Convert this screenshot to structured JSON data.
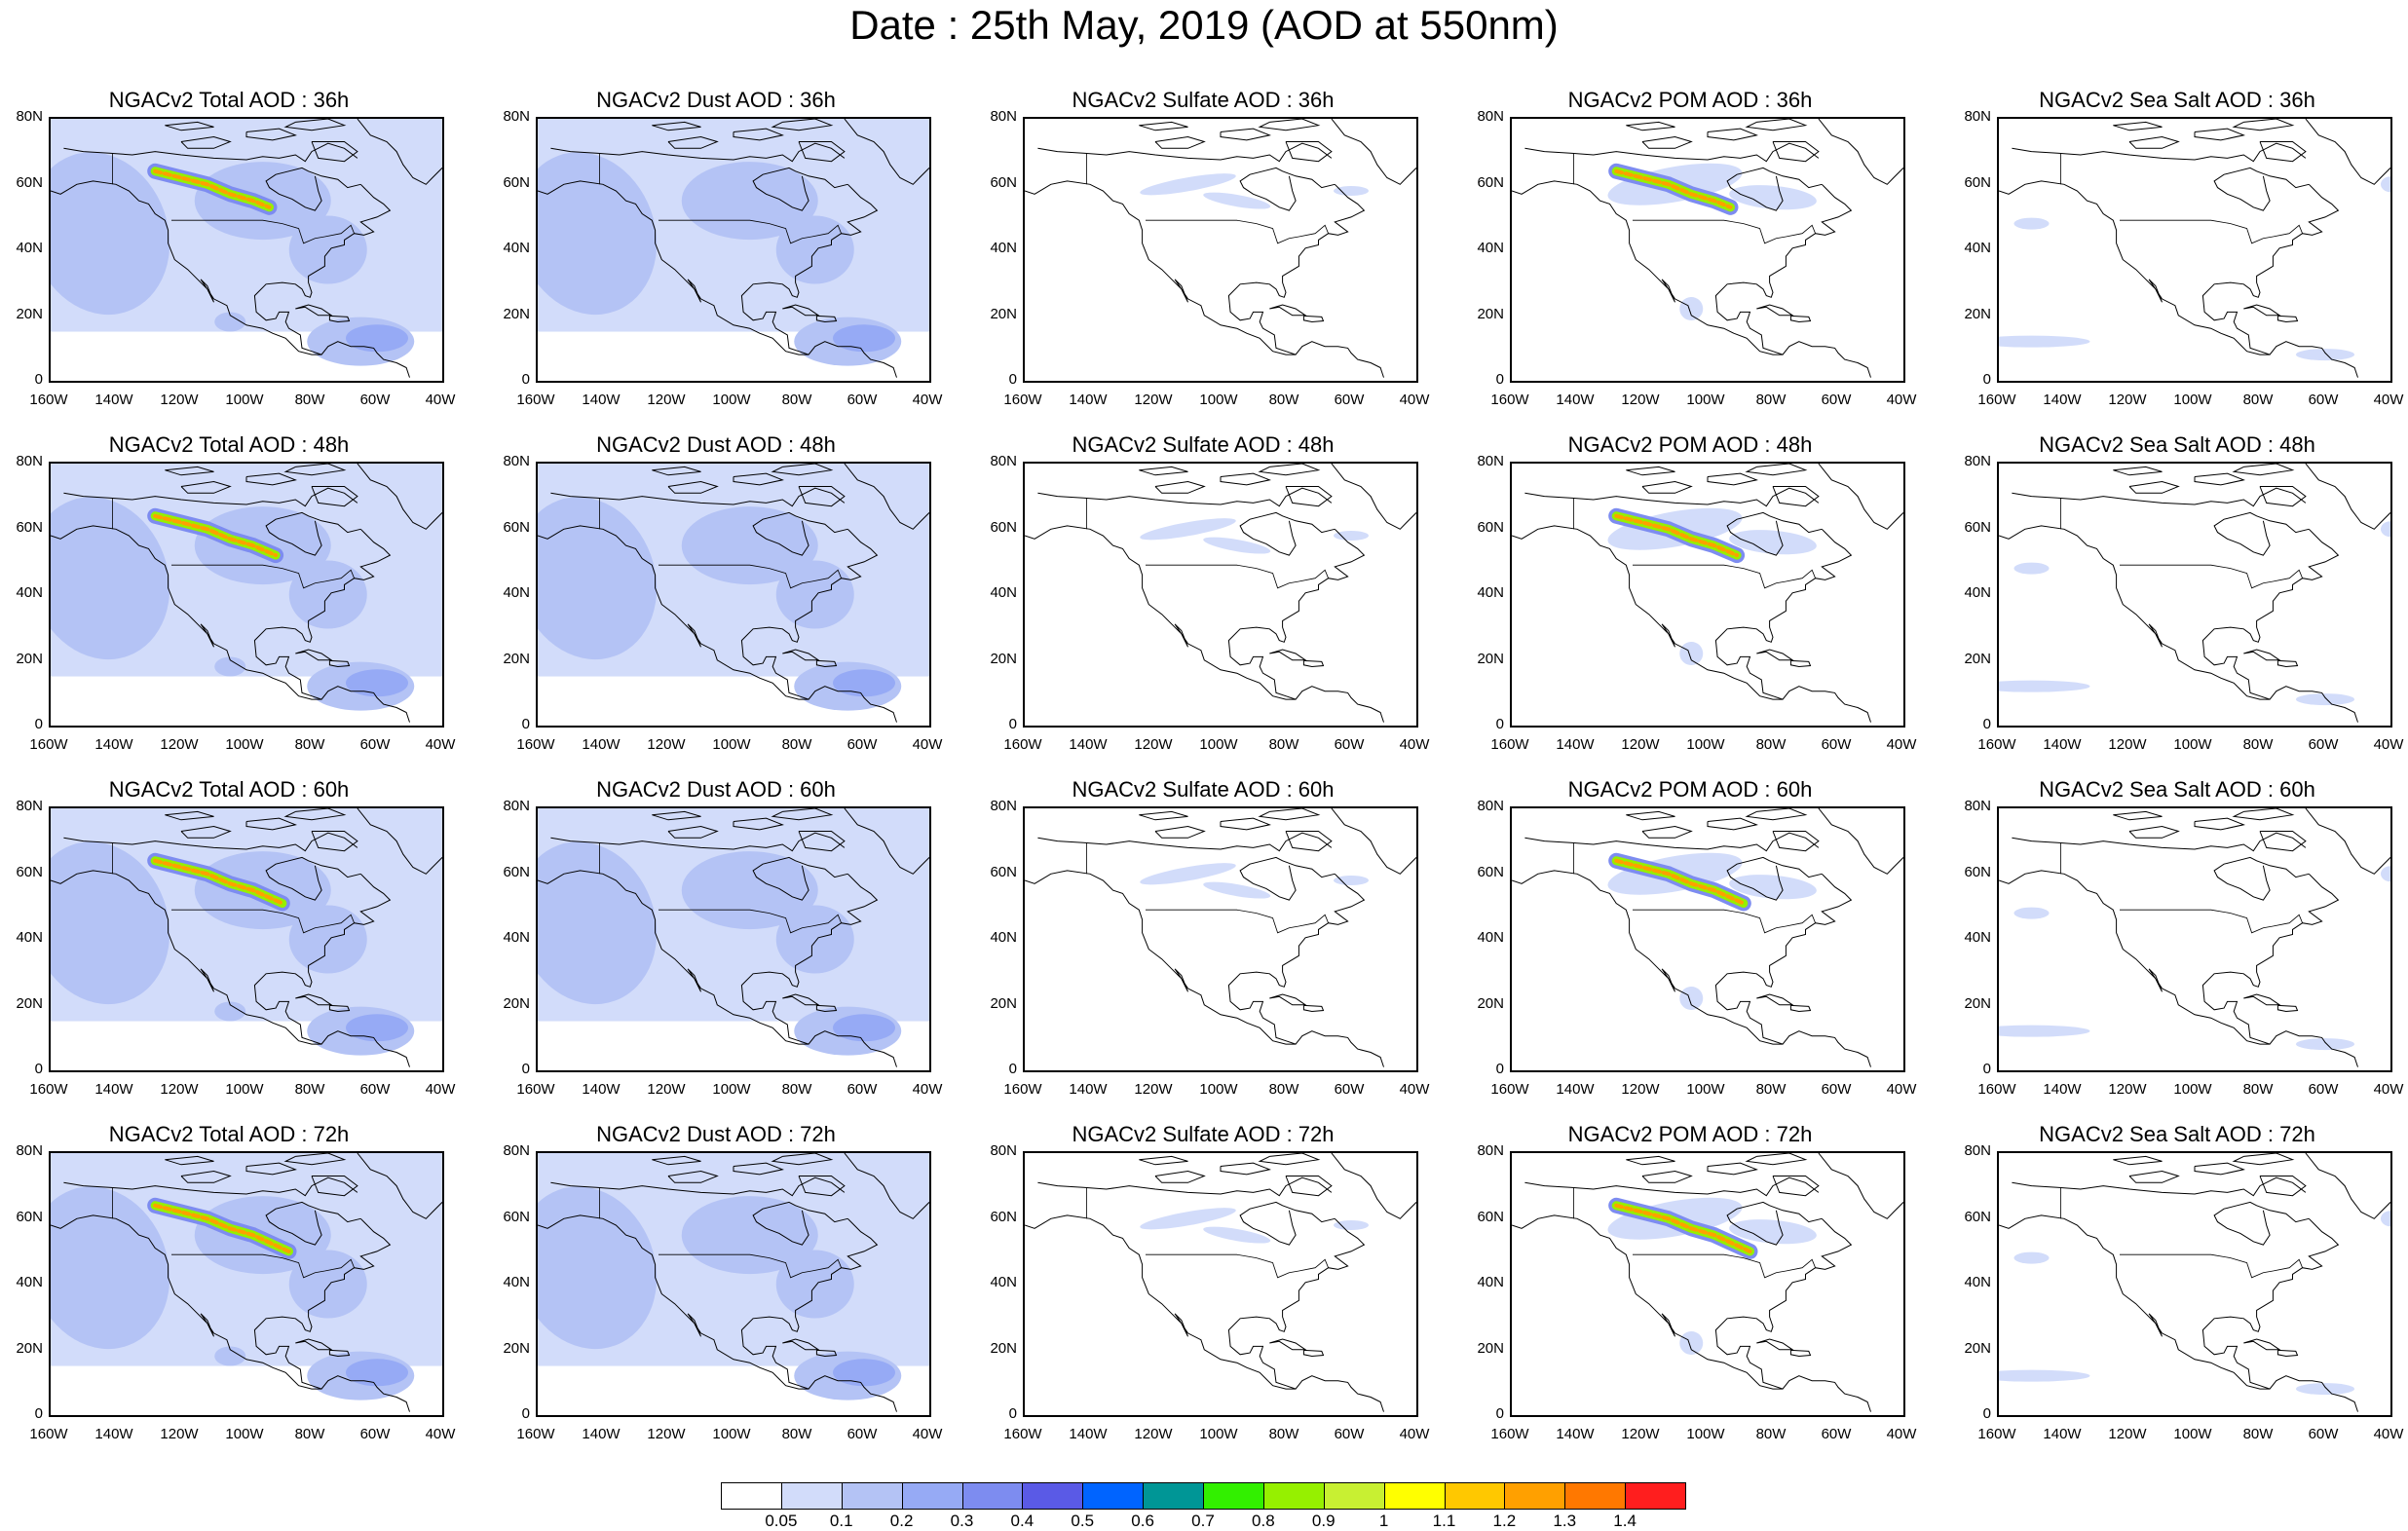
{
  "title": "Date : 25th May, 2019 (AOD at 550nm)",
  "lat_labels": [
    "80N",
    "60N",
    "40N",
    "20N",
    "0"
  ],
  "lon_labels": [
    "160W",
    "140W",
    "120W",
    "100W",
    "80W",
    "60W",
    "40W"
  ],
  "panels": [
    [
      "NGACv2 Total AOD : 36h",
      "NGACv2 Dust AOD : 36h",
      "NGACv2 Sulfate AOD : 36h",
      "NGACv2 POM AOD : 36h",
      "NGACv2 Sea Salt AOD : 36h"
    ],
    [
      "NGACv2 Total AOD : 48h",
      "NGACv2 Dust AOD : 48h",
      "NGACv2 Sulfate AOD : 48h",
      "NGACv2 POM AOD : 48h",
      "NGACv2 Sea Salt AOD : 48h"
    ],
    [
      "NGACv2 Total AOD : 60h",
      "NGACv2 Dust AOD : 60h",
      "NGACv2 Sulfate AOD : 60h",
      "NGACv2 POM AOD : 60h",
      "NGACv2 Sea Salt AOD : 60h"
    ],
    [
      "NGACv2 Total AOD : 72h",
      "NGACv2 Dust AOD : 72h",
      "NGACv2 Sulfate AOD : 72h",
      "NGACv2 POM AOD : 72h",
      "NGACv2 Sea Salt  AOD : 72h"
    ]
  ],
  "colorbar": {
    "labels": [
      "0.05",
      "0.1",
      "0.2",
      "0.3",
      "0.4",
      "0.5",
      "0.6",
      "0.7",
      "0.8",
      "0.9",
      "1",
      "1.1",
      "1.2",
      "1.3",
      "1.4"
    ],
    "colors": [
      "#ffffff",
      "#d2dcfa",
      "#b4c3f5",
      "#96aaf5",
      "#7d8cf0",
      "#5a5ae6",
      "#0064ff",
      "#009696",
      "#32f000",
      "#96f000",
      "#c8f032",
      "#ffff00",
      "#ffc800",
      "#ffa000",
      "#ff7800",
      "#ff1e1e"
    ]
  }
}
